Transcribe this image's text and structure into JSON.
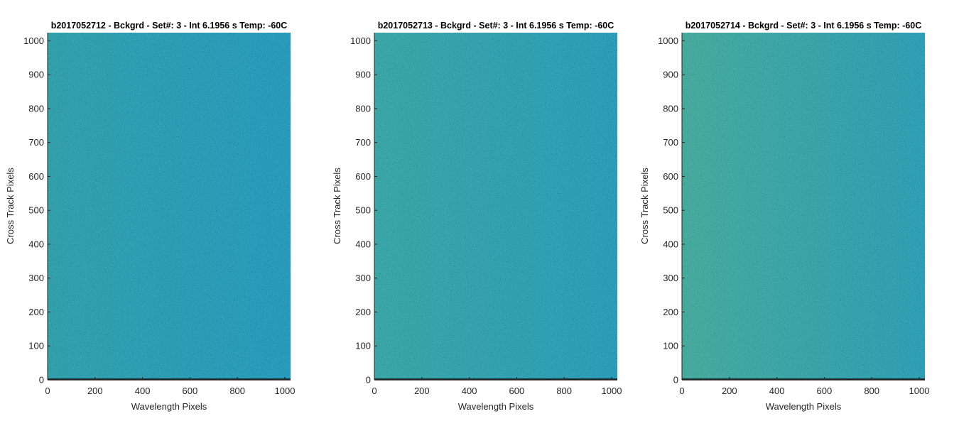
{
  "chart_data": [
    {
      "type": "heatmap",
      "title": "b2017052712 - Bckgrd - Set#: 3 - Int 6.1956 s Temp: -60C",
      "xlabel": "Wavelength Pixels",
      "ylabel": "Cross Track Pixels",
      "xlim": [
        0,
        1024
      ],
      "ylim": [
        0,
        1024
      ],
      "xticks": [
        0,
        200,
        400,
        600,
        800,
        1000
      ],
      "yticks": [
        0,
        100,
        200,
        300,
        400,
        500,
        600,
        700,
        800,
        900,
        1000
      ],
      "xtick_labels": [
        "0",
        "200",
        "400",
        "600",
        "800",
        "1000"
      ],
      "ytick_labels": [
        "0",
        "100",
        "200",
        "300",
        "400",
        "500",
        "600",
        "700",
        "800",
        "900",
        "1000"
      ],
      "colors": {
        "left": "#1aa6b4",
        "right": "#0d9fca",
        "row0": "#1a2a2e"
      }
    },
    {
      "type": "heatmap",
      "title": "b2017052713 - Bckgrd - Set#: 3 - Int 6.1956 s Temp: -60C",
      "xlabel": "Wavelength Pixels",
      "ylabel": "Cross Track Pixels",
      "xlim": [
        0,
        1024
      ],
      "ylim": [
        0,
        1024
      ],
      "xticks": [
        0,
        200,
        400,
        600,
        800,
        1000
      ],
      "yticks": [
        0,
        100,
        200,
        300,
        400,
        500,
        600,
        700,
        800,
        900,
        1000
      ],
      "xtick_labels": [
        "0",
        "200",
        "400",
        "600",
        "800",
        "1000"
      ],
      "ytick_labels": [
        "0",
        "100",
        "200",
        "300",
        "400",
        "500",
        "600",
        "700",
        "800",
        "900",
        "1000"
      ],
      "colors": {
        "left": "#25aeae",
        "right": "#12a2c4",
        "row0": "#1a2a2e"
      }
    },
    {
      "type": "heatmap",
      "title": "b2017052714 - Bckgrd - Set#: 3 - Int 6.1956 s Temp: -60C",
      "xlabel": "Wavelength Pixels",
      "ylabel": "Cross Track Pixels",
      "xlim": [
        0,
        1024
      ],
      "ylim": [
        0,
        1024
      ],
      "xticks": [
        0,
        200,
        400,
        600,
        800,
        1000
      ],
      "yticks": [
        0,
        100,
        200,
        300,
        400,
        500,
        600,
        700,
        800,
        900,
        1000
      ],
      "xtick_labels": [
        "0",
        "200",
        "400",
        "600",
        "800",
        "1000"
      ],
      "ytick_labels": [
        "0",
        "100",
        "200",
        "300",
        "400",
        "500",
        "600",
        "700",
        "800",
        "900",
        "1000"
      ],
      "colors": {
        "left": "#34b3a2",
        "right": "#17a4bf",
        "row0": "#1a2a2e"
      }
    }
  ]
}
